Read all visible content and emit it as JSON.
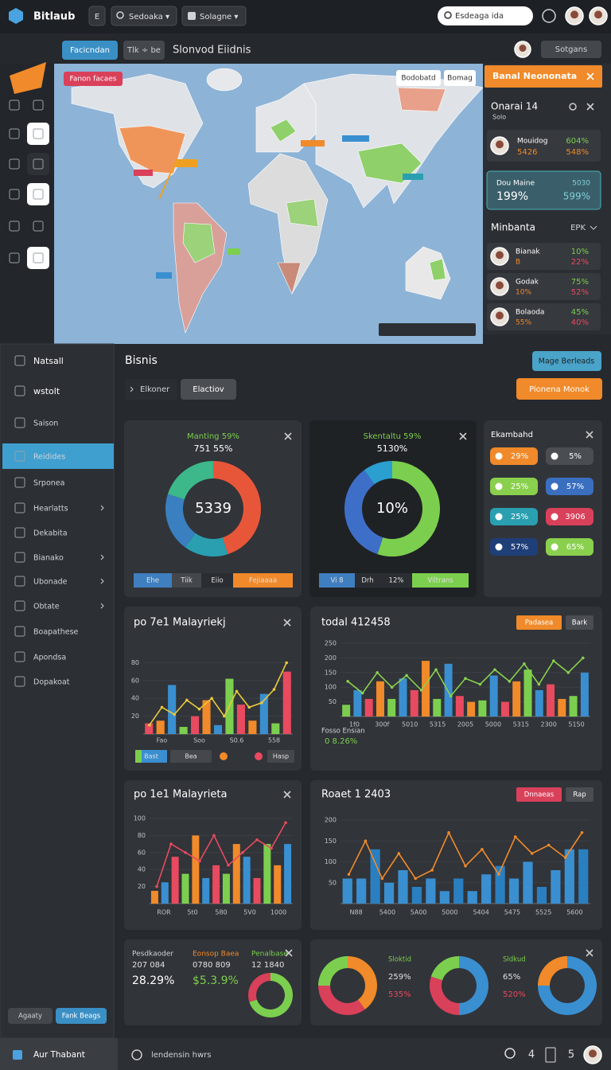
{
  "topbar": {
    "brand": "Bitlaub",
    "buttons": [
      "E",
      "Sedoaka ▾",
      "Solagne ▾"
    ],
    "search": "Esdeaga ida"
  },
  "tabs": [
    "Facicndan",
    "Tlk ÷ be"
  ],
  "page_title": "Slonvod Eiidnis",
  "user_button": "Sotgans",
  "map": {
    "tag": "Fanon facaes",
    "buttons": [
      "Bodobatd",
      "Bomag"
    ]
  },
  "notifications": {
    "header": "Banal Neononata",
    "title": "Onarai 14",
    "subtitle": "Solo",
    "item": {
      "name": "Mouidog",
      "a": "604%",
      "b": "5426",
      "c": "548%"
    },
    "highlight": {
      "name": "Dou Maine",
      "a": "199%",
      "b": "5030",
      "c": "599%"
    },
    "section": {
      "title": "Minbanta",
      "label": "EPK"
    },
    "list": [
      {
        "name": "Bianak",
        "a": "10%",
        "b": "B",
        "c": "22%"
      },
      {
        "name": "Godak",
        "a": "75%",
        "b": "10%",
        "c": "52%"
      },
      {
        "name": "Bolaoda",
        "a": "45%",
        "b": "55%",
        "c": "40%"
      }
    ]
  },
  "sidebar": {
    "items": [
      "Natsall",
      "wstolt",
      "Saison",
      "Reidides",
      "Srponea",
      "Hearlatts",
      "Dekabita",
      "Bianako",
      "Ubonade",
      "Obtate",
      "Boapathese",
      "Apondsa",
      "Dopakoat"
    ],
    "active": 3,
    "footer": [
      "Agaaty",
      "Fank Beags"
    ]
  },
  "main": {
    "title": "Bisnis",
    "buttons": [
      "Mage Berleads",
      "Pionena Monok"
    ],
    "tabs": [
      "Elkoner",
      "Elactiov"
    ]
  },
  "donuts": [
    {
      "title": "Manting 59%",
      "subtitle": "751 55%",
      "center": "5339",
      "values": [
        45,
        15,
        20,
        20
      ],
      "colors": [
        "#e8563a",
        "#2a9fb0",
        "#3a7fc0",
        "#3cb88a"
      ],
      "legend": [
        "Ehe",
        "Tiik",
        "Eiio",
        "Fejiaaaa"
      ]
    },
    {
      "title": "Skentaltu 59%",
      "subtitle": "5130%",
      "center": "10%",
      "values": [
        55,
        35,
        10
      ],
      "colors": [
        "#7ccf4e",
        "#3e6fc8",
        "#2a9fd0"
      ],
      "legend": [
        "Vi 8",
        "Drh",
        "12%",
        "Viltrans"
      ]
    }
  ],
  "pills": {
    "title": "Ekambahd",
    "items": [
      "29%",
      "5%",
      "25%",
      "57%",
      "25%",
      "3906",
      "57%",
      "65%"
    ],
    "colors": [
      "#f0892a",
      "#4a4d52",
      "#8ad04e",
      "#3a6fc0",
      "#2a9fb0",
      "#d9405a",
      "#1f3f78",
      "#8ad04e"
    ]
  },
  "charts": [
    {
      "title": "po 7e1 Malayriekj",
      "ylim": [
        0,
        100
      ],
      "yticks": [
        20,
        40,
        60,
        80
      ],
      "x_labels": [
        "Fao",
        "Soo",
        "S0.6",
        "558"
      ],
      "bars": [
        12,
        15,
        55,
        8,
        20,
        38,
        10,
        62,
        33,
        15,
        45,
        12,
        70
      ],
      "bar_colors": [
        "#e84a5f",
        "#f08a2a",
        "#3a8fd0",
        "#7ccf4e"
      ],
      "line": [
        10,
        30,
        22,
        38,
        28,
        40,
        20,
        48,
        30,
        35,
        50,
        80
      ],
      "line_color": "#e8c93a",
      "legend": [
        "Bast",
        "Bea",
        "Hasp"
      ]
    },
    {
      "title": "todal 412458",
      "buttons": [
        "Padasea",
        "Bark"
      ],
      "ylim": [
        0,
        250
      ],
      "yticks": [
        50,
        100,
        150,
        200,
        250
      ],
      "x_labels": [
        "1f0",
        "300f",
        "5010",
        "5315",
        "2005",
        "5000",
        "5315",
        "2300",
        "5150"
      ],
      "bars": [
        40,
        90,
        60,
        120,
        60,
        130,
        90,
        190,
        60,
        180,
        70,
        50,
        55,
        140,
        50,
        120,
        160,
        90,
        110,
        60,
        70,
        150
      ],
      "bar_colors": [
        "#7ccf4e",
        "#3a8fd0",
        "#e84a5f",
        "#f08a2a"
      ],
      "line": [
        120,
        80,
        150,
        100,
        140,
        90,
        160,
        70,
        130,
        110,
        160,
        120,
        180,
        110,
        190,
        150,
        200
      ],
      "line_color": "#8ad04e",
      "footnote": [
        "Fosso Ensian",
        "0 8.26%"
      ]
    },
    {
      "title": "po 1e1 Malayrieta",
      "ylim": [
        0,
        100
      ],
      "yticks": [
        20,
        40,
        60,
        80,
        100
      ],
      "x_labels": [
        "ROR",
        "5t0",
        "580",
        "5V0",
        "1000"
      ],
      "bars": [
        15,
        25,
        55,
        35,
        80,
        30,
        45,
        35,
        70,
        55,
        30,
        70,
        45,
        70
      ],
      "bar_colors": [
        "#f08a2a",
        "#3a8fd0",
        "#e84a5f",
        "#7ccf4e"
      ],
      "line": [
        20,
        70,
        60,
        50,
        80,
        45,
        60,
        75,
        65,
        95
      ],
      "line_color": "#e84a5f"
    },
    {
      "title": "Roaet 1 2403",
      "buttons": [
        "Dnnaeas",
        "Rap"
      ],
      "ylim": [
        0,
        200
      ],
      "yticks": [
        50,
        100,
        150,
        200
      ],
      "x_labels": [
        "N88",
        "5400",
        "5A00",
        "5000",
        "5404",
        "5475",
        "5525",
        "5600"
      ],
      "bars": [
        60,
        60,
        130,
        50,
        80,
        40,
        60,
        30,
        60,
        30,
        70,
        90,
        60,
        100,
        40,
        80,
        130,
        130
      ],
      "bar_colors": [
        "#3a8fd0",
        "#3a8fd0",
        "#2a7fc0"
      ],
      "line": [
        70,
        150,
        60,
        120,
        60,
        80,
        170,
        90,
        130,
        70,
        160,
        120,
        140,
        110,
        170
      ],
      "line_color": "#f08a2a"
    }
  ],
  "stats": [
    {
      "label": "Pesdkaoder",
      "sub": "207 084",
      "value": "28.29%"
    },
    {
      "label": "Eonsop Baea",
      "sub": "0780 809",
      "value": "$5.3.9%"
    },
    {
      "label": "Penalbase",
      "sub": "12 1840",
      "values": [
        70,
        30
      ],
      "colors": [
        "#7ccf4e",
        "#d9405a"
      ]
    }
  ],
  "ring_card": {
    "rings": [
      {
        "values": [
          40,
          35,
          25
        ],
        "colors": [
          "#f08a2a",
          "#d9405a",
          "#7ccf4e"
        ]
      },
      {
        "values": [
          50,
          30,
          20
        ],
        "colors": [
          "#3a8fd0",
          "#d9405a",
          "#7ccf4e"
        ]
      },
      {
        "values": [
          75,
          25
        ],
        "colors": [
          "#3a8fd0",
          "#f08a2a"
        ]
      }
    ],
    "texts": [
      [
        "Sloktid",
        "259%",
        "535%"
      ],
      [
        "Sldkud",
        "65%",
        "520%"
      ]
    ]
  },
  "footer": {
    "left": "Aur Thabant",
    "middle": "lendensin hwrs",
    "icons": [
      "4",
      "5"
    ]
  }
}
